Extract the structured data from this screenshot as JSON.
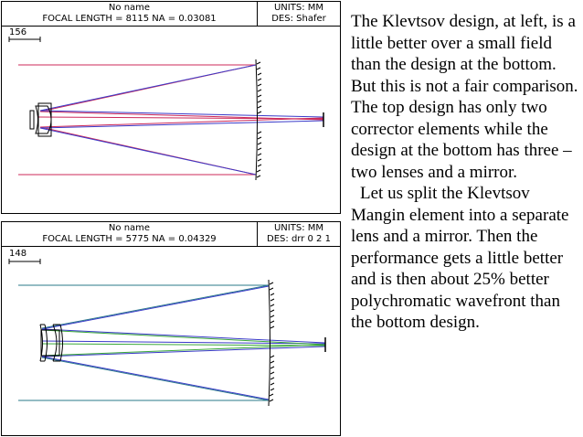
{
  "top_panel": {
    "name": "No name",
    "specs": "FOCAL LENGTH = 8115   NA = 0.03081",
    "units": "UNITS: MM",
    "designer": "DES: Shafer",
    "scale": "156"
  },
  "bottom_panel": {
    "name": "No name",
    "specs": "FOCAL LENGTH = 5775   NA = 0.04329",
    "units": "UNITS: MM",
    "designer": "DES: drr 0 2 1",
    "scale": "148"
  },
  "description": {
    "paragraph1": "The Klevtsov design, at left, is a little better over a small field than the design at the bottom.  But this is not a fair comparison.  The top design has only two corrector elements  while the design at the bottom has three – two lenses and a mirror.",
    "paragraph2": "Let us split the Klevtsov Mangin element into a separate lens and a mirror. Then the performance gets a little better and is then about 25% better polychromatic wavefront than the bottom design."
  },
  "colors": {
    "ray_red": "#cc2a5a",
    "ray_blue": "#3a3ac8",
    "ray_green": "#3aa83a",
    "ray_teal": "#2a7a8a"
  }
}
